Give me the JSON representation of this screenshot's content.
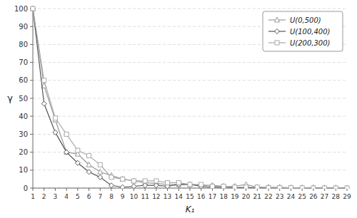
{
  "chart_data": {
    "type": "line",
    "xlabel": "K₁",
    "ylabel": "γ",
    "x": [
      1,
      2,
      3,
      4,
      5,
      6,
      7,
      8,
      9,
      10,
      11,
      12,
      13,
      14,
      15,
      16,
      17,
      18,
      19,
      20,
      21,
      22,
      23,
      24,
      25,
      26,
      27,
      28,
      29
    ],
    "series": [
      {
        "name": "U(0,500)",
        "color": "#999999",
        "marker": "triangle",
        "values": [
          100,
          57,
          38,
          20,
          19,
          13,
          9,
          7,
          5,
          4,
          3,
          2.5,
          2,
          2,
          2,
          1.5,
          1.5,
          1,
          1,
          2,
          0.5,
          0.5,
          0.5,
          0.2,
          0.2,
          0.2,
          0.1,
          0.1,
          0
        ]
      },
      {
        "name": "U(100,400)",
        "color": "#555555",
        "marker": "diamond",
        "values": [
          100,
          47,
          31,
          20,
          14,
          9,
          6,
          1.5,
          0.5,
          1,
          1.5,
          1.5,
          1,
          2,
          2,
          1,
          0.5,
          0.5,
          0.2,
          0.2,
          0.2,
          0,
          0,
          0,
          0,
          0,
          0,
          0,
          0
        ]
      },
      {
        "name": "U(200,300)",
        "color": "#aaaaaa",
        "marker": "square",
        "values": [
          100,
          60,
          39,
          30,
          21,
          18,
          13,
          6,
          5,
          4,
          4,
          4,
          3,
          3,
          2,
          2,
          1,
          1,
          0.5,
          0.5,
          0.5,
          0.2,
          0.2,
          0.2,
          0.1,
          0,
          0,
          0,
          0
        ]
      }
    ],
    "xlim": [
      1,
      29
    ],
    "ylim": [
      0,
      100
    ],
    "xticks": [
      1,
      2,
      3,
      4,
      5,
      6,
      7,
      8,
      9,
      10,
      11,
      12,
      13,
      14,
      15,
      16,
      17,
      18,
      19,
      20,
      21,
      22,
      23,
      24,
      25,
      26,
      27,
      28,
      29
    ],
    "yticks": [
      0,
      10,
      20,
      30,
      40,
      50,
      60,
      70,
      80,
      90,
      100
    ],
    "grid": true,
    "legend": "upper right"
  }
}
